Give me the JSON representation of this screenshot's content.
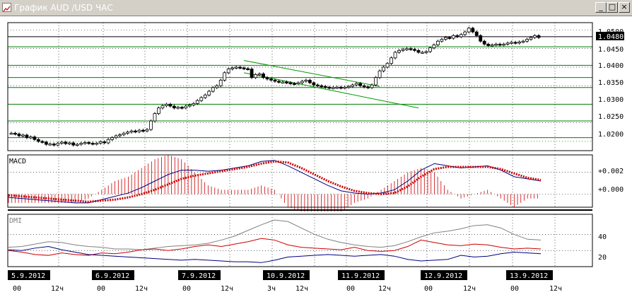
{
  "window": {
    "title": "График AUD /USD  ЧАС",
    "minimize_label": "_",
    "restore_label": "□",
    "close_label": "×"
  },
  "colors": {
    "frame": "#000000",
    "grid": "#000000",
    "level_line": "#007f00",
    "channel_line": "#009900",
    "price_line": "#000000",
    "macd_line": "#000080",
    "signal_line": "#cc0000",
    "histogram": "#cc0000",
    "adx_line": "#808080",
    "plus_di": "#cc0000",
    "minus_di": "#000080",
    "date_label_bg": "#000000",
    "date_label_fg": "#ffffff"
  },
  "price_panel": {
    "y_ticks": [
      "1.0500",
      "1.0450",
      "1.0400",
      "1.0350",
      "1.0300",
      "1.0250",
      "1.0200"
    ],
    "current_price": "1.0480",
    "levels": [
      1.0455,
      1.0405,
      1.0372,
      1.0345,
      1.03,
      1.0255,
      1.021
    ]
  },
  "macd_panel": {
    "label": "MACD",
    "y_ticks": [
      "+0.002",
      "+0.000"
    ]
  },
  "dmi_panel": {
    "label": "DMI",
    "y_ticks": [
      "40",
      "20"
    ]
  },
  "time_axis": {
    "dates": [
      "5.9.2012",
      "6.9.2012",
      "7.9.2012",
      "10.9.2012",
      "11.9.2012",
      "12.9.2012",
      "13.9.2012"
    ],
    "hour_labels": [
      "00",
      "12ч",
      "00",
      "12ч",
      "00",
      "12ч",
      "3ч",
      "12ч",
      "00",
      "12ч",
      "00",
      "12ч",
      "00",
      "12ч"
    ]
  },
  "chart_data": {
    "type": "candlestick",
    "instrument": "AUD/USD",
    "timeframe": "ЧАС",
    "ylim": [
      1.0175,
      1.052
    ],
    "close": [
      1.0222,
      1.022,
      1.0215,
      1.0217,
      1.021,
      1.0212,
      1.0205,
      1.02,
      1.0198,
      1.0192,
      1.0193,
      1.019,
      1.0195,
      1.0198,
      1.0194,
      1.0196,
      1.019,
      1.0192,
      1.0195,
      1.0197,
      1.0195,
      1.0193,
      1.0195,
      1.0199,
      1.0196,
      1.0205,
      1.021,
      1.0215,
      1.0218,
      1.0222,
      1.0225,
      1.0228,
      1.0226,
      1.023,
      1.0228,
      1.0232,
      1.0255,
      1.0275,
      1.029,
      1.0296,
      1.03,
      1.0295,
      1.029,
      1.0292,
      1.029,
      1.0295,
      1.0298,
      1.0302,
      1.031,
      1.0318,
      1.0325,
      1.0335,
      1.0345,
      1.035,
      1.0365,
      1.0385,
      1.0395,
      1.0398,
      1.04,
      1.0398,
      1.0396,
      1.0395,
      1.0372,
      1.038,
      1.0382,
      1.0372,
      1.0368,
      1.0365,
      1.0362,
      1.036,
      1.036,
      1.0358,
      1.0356,
      1.0355,
      1.0358,
      1.0362,
      1.0365,
      1.0358,
      1.0352,
      1.035,
      1.0348,
      1.0346,
      1.0344,
      1.0345,
      1.0346,
      1.0344,
      1.0346,
      1.0348,
      1.0352,
      1.0356,
      1.035,
      1.0347,
      1.0345,
      1.0352,
      1.0372,
      1.039,
      1.04,
      1.041,
      1.0425,
      1.044,
      1.0445,
      1.0448,
      1.045,
      1.0448,
      1.0445,
      1.044,
      1.044,
      1.0442,
      1.0452,
      1.046,
      1.047,
      1.0475,
      1.048,
      1.0478,
      1.0485,
      1.0482,
      1.0488,
      1.0495,
      1.0505,
      1.0495,
      1.0485,
      1.047,
      1.0462,
      1.0458,
      1.046,
      1.0462,
      1.046,
      1.0462,
      1.0465,
      1.0467,
      1.0465,
      1.0468,
      1.047,
      1.0475,
      1.048,
      1.0485,
      1.048
    ],
    "macd": [
      -0.0003,
      -0.0004,
      -0.0005,
      -0.0006,
      -0.0007,
      -0.0008,
      -0.0008,
      -0.0005,
      -0.0002,
      0.0001,
      0.0006,
      0.0012,
      0.0018,
      0.0022,
      0.0022,
      0.0021,
      0.0022,
      0.0024,
      0.0026,
      0.003,
      0.0031,
      0.0026,
      0.002,
      0.0014,
      0.0008,
      0.0003,
      0.0001,
      0.0,
      0.0001,
      0.0004,
      0.0012,
      0.0022,
      0.0028,
      0.0026,
      0.0024,
      0.0025,
      0.0026,
      0.0022,
      0.0016,
      0.0014,
      0.0012
    ],
    "signal": [
      -0.0001,
      -0.0002,
      -0.0003,
      -0.0004,
      -0.0005,
      -0.0006,
      -0.0007,
      -0.0006,
      -0.0005,
      -0.0003,
      0.0,
      0.0004,
      0.0009,
      0.0014,
      0.0017,
      0.0019,
      0.0021,
      0.0023,
      0.0025,
      0.0028,
      0.003,
      0.0029,
      0.0024,
      0.0018,
      0.0012,
      0.0007,
      0.0003,
      0.0001,
      0.0,
      0.0001,
      0.0007,
      0.0016,
      0.0023,
      0.0025,
      0.0025,
      0.0025,
      0.0025,
      0.0023,
      0.0019,
      0.0015,
      0.0013
    ],
    "adx": [
      24,
      25,
      28,
      31,
      30,
      27,
      25,
      24,
      22,
      22,
      21,
      23,
      25,
      26,
      27,
      29,
      33,
      38,
      45,
      52,
      58,
      56,
      48,
      40,
      34,
      30,
      27,
      25,
      24,
      26,
      31,
      37,
      42,
      44,
      47,
      51,
      52,
      48,
      40,
      34,
      33
    ],
    "plus_di": [
      20,
      18,
      15,
      14,
      17,
      15,
      14,
      17,
      16,
      18,
      21,
      22,
      20,
      22,
      25,
      27,
      25,
      28,
      31,
      35,
      33,
      27,
      24,
      23,
      22,
      21,
      24,
      20,
      19,
      20,
      25,
      33,
      30,
      27,
      26,
      28,
      27,
      24,
      22,
      23,
      22
    ],
    "minus_di": [
      21,
      20,
      23,
      25,
      21,
      18,
      15,
      14,
      13,
      12,
      11,
      10,
      9,
      8,
      9,
      8,
      7,
      6,
      6,
      5,
      8,
      12,
      13,
      14,
      15,
      14,
      13,
      14,
      15,
      13,
      9,
      7,
      8,
      9,
      14,
      12,
      13,
      16,
      18,
      17,
      16
    ],
    "levels": [
      1.0455,
      1.0405,
      1.0372,
      1.0345,
      1.03,
      1.0255,
      1.021
    ],
    "channel": [
      {
        "from_index": 60,
        "to_index": 95,
        "from": 1.0418,
        "to": 1.0348
      },
      {
        "from_index": 60,
        "to_index": 105,
        "from": 1.0385,
        "to": 1.029
      }
    ]
  }
}
